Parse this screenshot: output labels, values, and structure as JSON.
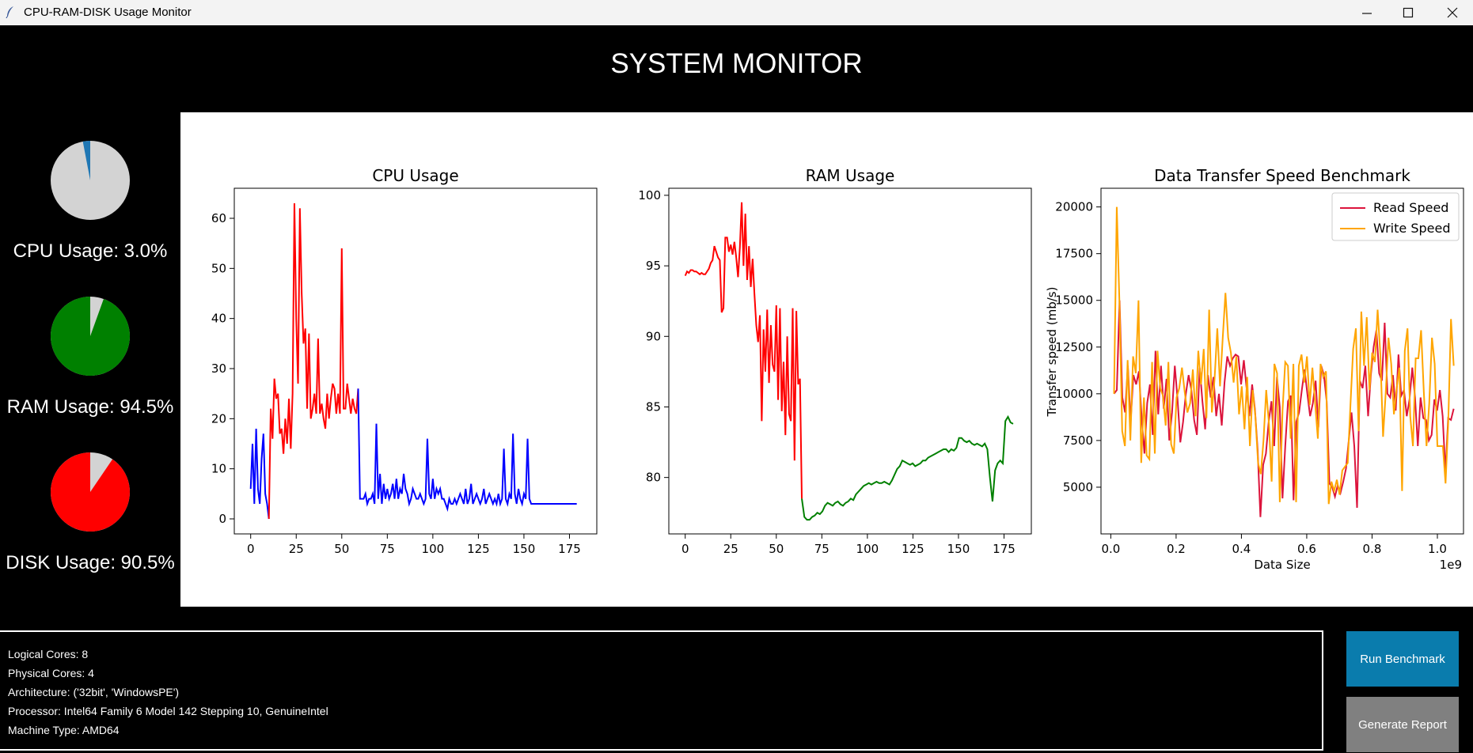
{
  "window": {
    "title": "CPU-RAM-DISK Usage Monitor",
    "minimize": "—",
    "maximize": "☐",
    "close": "✕"
  },
  "header": {
    "title": "SYSTEM MONITOR"
  },
  "gauges": [
    {
      "label": "CPU Usage: 3.0%",
      "value": 3.0,
      "color": "#1f77b4",
      "rest": "#d3d3d3"
    },
    {
      "label": "RAM Usage: 94.5%",
      "value": 94.5,
      "color": "#008000",
      "rest": "#d3d3d3"
    },
    {
      "label": "DISK Usage: 90.5%",
      "value": 90.5,
      "color": "#ff0000",
      "rest": "#d3d3d3"
    }
  ],
  "chart_data": [
    {
      "type": "line",
      "title": "CPU Usage",
      "xlim": [
        -9,
        190
      ],
      "ylim": [
        -3,
        66
      ],
      "xticks": [
        "0",
        "25",
        "50",
        "75",
        "100",
        "125",
        "150",
        "175"
      ],
      "xtick_values": [
        0,
        25,
        50,
        75,
        100,
        125,
        150,
        175
      ],
      "yticks": [
        "0",
        "10",
        "20",
        "30",
        "40",
        "50",
        "60"
      ],
      "ytick_values": [
        0,
        10,
        20,
        30,
        40,
        50,
        60
      ],
      "colors": {
        "low": "#0000ff",
        "high": "#ff0000"
      },
      "threshold_note_values": [
        13,
        68
      ],
      "values": [
        6,
        15,
        3,
        18,
        6,
        3,
        12,
        17,
        5,
        3,
        0,
        22,
        16,
        28,
        24,
        25,
        17,
        18,
        13,
        20,
        15,
        24,
        14,
        25,
        63,
        40,
        27,
        62,
        45,
        35,
        38,
        22,
        37,
        20,
        22,
        25,
        21,
        36,
        21,
        23,
        20,
        18,
        25,
        20,
        24,
        27,
        26,
        21,
        25,
        21,
        54,
        22,
        22,
        27,
        24,
        21,
        24,
        22,
        21,
        26,
        4,
        4,
        4,
        5,
        3,
        4,
        4,
        5,
        3,
        19,
        4,
        9,
        3,
        7,
        4,
        6,
        4,
        5,
        7,
        4,
        8,
        4,
        6,
        5,
        9,
        6,
        5,
        3,
        4,
        6,
        5,
        4,
        4,
        5,
        4,
        3,
        4,
        16,
        5,
        4,
        8,
        4,
        6,
        5,
        6,
        4,
        4,
        3,
        2,
        4,
        3,
        3,
        4,
        3,
        4,
        5,
        4,
        3,
        6,
        3,
        4,
        7,
        3,
        4,
        5,
        4,
        3,
        4,
        6,
        3,
        4,
        5,
        4,
        3,
        4,
        3,
        5,
        3,
        4,
        14,
        4,
        3,
        5,
        4,
        17,
        5,
        3,
        6,
        4,
        3,
        5,
        4,
        16,
        4,
        3,
        3,
        3,
        3,
        3,
        3,
        3,
        3,
        3,
        3,
        3,
        3,
        3,
        3,
        3,
        3,
        3,
        3,
        3,
        3,
        3,
        3,
        3,
        3,
        3,
        3
      ],
      "high_range": [
        11,
        59
      ]
    },
    {
      "type": "line",
      "title": "RAM Usage",
      "xlim": [
        -9,
        190
      ],
      "ylim": [
        76,
        100.5
      ],
      "xticks": [
        "0",
        "25",
        "50",
        "75",
        "100",
        "125",
        "150",
        "175"
      ],
      "xtick_values": [
        0,
        25,
        50,
        75,
        100,
        125,
        150,
        175
      ],
      "yticks": [
        "80",
        "85",
        "90",
        "95",
        "100"
      ],
      "ytick_values": [
        80,
        85,
        90,
        95,
        100
      ],
      "colors": {
        "low": "#008000",
        "high": "#ff0000"
      }
    },
    {
      "type": "line",
      "title": "Data Transfer Speed Benchmark",
      "xlabel": "Data Size",
      "ylabel": "Transfer speed (mb/s)",
      "offset_label": "1e9",
      "xlim": [
        -0.03,
        1.08
      ],
      "ylim": [
        2500,
        21000
      ],
      "xticks": [
        "0.0",
        "0.2",
        "0.4",
        "0.6",
        "0.8",
        "1.0"
      ],
      "xtick_values": [
        0,
        0.2,
        0.4,
        0.6,
        0.8,
        1.0
      ],
      "yticks": [
        "5000",
        "7500",
        "10000",
        "12500",
        "15000",
        "17500",
        "20000"
      ],
      "ytick_values": [
        5000,
        7500,
        10000,
        12500,
        15000,
        17500,
        20000
      ],
      "legend": "top-right",
      "series": [
        {
          "name": "Read Speed",
          "color": "#dc143c",
          "values": [
            10000,
            10200,
            15000,
            9800,
            9000,
            11500,
            8500,
            11000,
            10500,
            11200,
            8700,
            6800,
            9500,
            10500,
            7800,
            12300,
            8900,
            11500,
            9200,
            10800,
            7500,
            9000,
            11500,
            9700,
            7400,
            8500,
            10000,
            11000,
            10200,
            8600,
            7800,
            11400,
            9600,
            8100,
            11000,
            9800,
            10900,
            8800,
            10000,
            8300,
            10600,
            12000,
            11500,
            11900,
            12100,
            12000,
            10500,
            11800,
            10300,
            8800,
            10500,
            9200,
            7000,
            3400,
            6200,
            6800,
            8500,
            9600,
            7200,
            10900,
            9300,
            4400,
            7200,
            9600,
            9900,
            4300,
            8500,
            9000,
            10200,
            11300,
            10000,
            8800,
            9500,
            10700,
            8200,
            11500,
            11000,
            9600,
            5200,
            5000,
            4500,
            5100,
            4700,
            5300,
            6000,
            7500,
            9000,
            7200,
            3900,
            10700,
            10300,
            11500,
            8800,
            11000,
            12500,
            13400,
            11100,
            10700,
            13800,
            10000,
            9800,
            11000,
            9100,
            12100,
            9900,
            10200,
            8800,
            9700,
            11400,
            9800,
            7200,
            9800,
            8700,
            8600,
            7500,
            7800,
            9700,
            9100,
            10200,
            8800,
            5800,
            8700,
            8600,
            9200
          ],
          "x_start": 0.01,
          "x_end": 1.05
        },
        {
          "name": "Write Speed",
          "color": "#ffa500",
          "values": [
            10000,
            20000,
            14800,
            8000,
            7200,
            11800,
            7500,
            12000,
            11100,
            15000,
            6300,
            9800,
            6700,
            6500,
            11700,
            6800,
            12300,
            10300,
            9900,
            8300,
            11700,
            7300,
            6800,
            9800,
            10300,
            11400,
            10100,
            9000,
            9500,
            11300,
            8800,
            12300,
            10500,
            12400,
            8700,
            14500,
            9000,
            10800,
            13500,
            10400,
            13000,
            15400,
            13000,
            12200,
            10600,
            12000,
            8900,
            10400,
            8100,
            10900,
            7200,
            10200,
            8800,
            6300,
            5700,
            7500,
            10200,
            8400,
            5300,
            11600,
            11100,
            4200,
            9100,
            11700,
            11500,
            7600,
            11600,
            4200,
            11500,
            12100,
            10600,
            12000,
            9400,
            11400,
            9500,
            7600,
            11600,
            10900,
            11200,
            4100,
            5300,
            4800,
            5400,
            4600,
            5900,
            6100,
            6300,
            9400,
            12400,
            13500,
            8000,
            14400,
            11500,
            14100,
            10200,
            12200,
            11700,
            14500,
            12100,
            7700,
            10100,
            13000,
            11600,
            8900,
            10300,
            11400,
            4800,
            12300,
            13500,
            8800,
            7200,
            11900,
            11900,
            13400,
            10100,
            7200,
            9500,
            13000,
            11600,
            7200,
            7200,
            7200,
            5200,
            8500,
            14000,
            11500
          ],
          "x_start": 0.01,
          "x_end": 1.05
        }
      ]
    }
  ],
  "info": [
    "Logical Cores: 8",
    "Physical Cores: 4",
    "Architecture: ('32bit', 'WindowsPE')",
    "Processor: Intel64 Family 6 Model 142 Stepping 10, GenuineIntel",
    "Machine Type: AMD64"
  ],
  "buttons": {
    "run": "Run Benchmark",
    "report": "Generate Report"
  }
}
